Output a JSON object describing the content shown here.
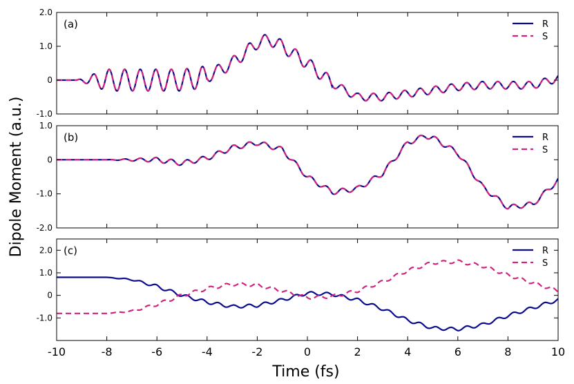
{
  "chart_data": [
    {
      "type": "line",
      "panel_label": "(a)",
      "ylim": [
        -1.0,
        2.0
      ],
      "yticks": [
        2.0,
        1.0,
        0,
        -1.0
      ],
      "ytick_labels": [
        "2.0",
        "1.0",
        "0",
        "-1.0"
      ],
      "legend": "top-right",
      "grid": false,
      "series": [
        {
          "name": "R",
          "color": "#0a0a8c",
          "dash": "solid",
          "x": [
            -10,
            -9,
            -8,
            -7,
            -6,
            -5,
            -4,
            -3,
            -2,
            -1.5,
            -1,
            0,
            1,
            2,
            3,
            4,
            5,
            6,
            7,
            8,
            9,
            10
          ],
          "y": [
            0,
            0,
            0,
            0,
            0,
            0,
            0.1,
            0.5,
            1.1,
            1.2,
            1.0,
            0.5,
            -0.1,
            -0.5,
            -0.5,
            -0.4,
            -0.3,
            -0.2,
            -0.15,
            -0.15,
            -0.15,
            0.05
          ]
        },
        {
          "name": "S",
          "color": "#d0237e",
          "dash": "dashed",
          "x": [
            -10,
            -9,
            -8,
            -7,
            -6,
            -5,
            -4,
            -3,
            -2,
            -1.5,
            -1,
            0,
            1,
            2,
            3,
            4,
            5,
            6,
            7,
            8,
            9,
            10
          ],
          "y": [
            0,
            0,
            0,
            0,
            0,
            0,
            0.1,
            0.5,
            1.1,
            1.2,
            1.0,
            0.5,
            -0.1,
            -0.5,
            -0.5,
            -0.4,
            -0.3,
            -0.2,
            -0.15,
            -0.15,
            -0.15,
            0.05
          ]
        }
      ]
    },
    {
      "type": "line",
      "panel_label": "(b)",
      "ylim": [
        -2.0,
        1.0
      ],
      "yticks": [
        1.0,
        0,
        -1.0,
        -2.0
      ],
      "ytick_labels": [
        "1.0",
        "0",
        "-1.0",
        "-2.0"
      ],
      "legend": "top-right",
      "grid": false,
      "series": [
        {
          "name": "R",
          "color": "#0a0a8c",
          "dash": "solid",
          "x": [
            -10,
            -8,
            -6,
            -5,
            -4,
            -3,
            -2,
            -1,
            0,
            1,
            2,
            3,
            4,
            4.7,
            5,
            6,
            7,
            8,
            9,
            10
          ],
          "y": [
            0,
            0,
            0,
            -0.1,
            0.05,
            0.35,
            0.5,
            0.3,
            -0.5,
            -0.95,
            -0.85,
            -0.4,
            0.5,
            0.7,
            0.65,
            0.2,
            -0.8,
            -1.4,
            -1.3,
            -0.6
          ]
        },
        {
          "name": "S",
          "color": "#d0237e",
          "dash": "dashed",
          "x": [
            -10,
            -8,
            -6,
            -5,
            -4,
            -3,
            -2,
            -1,
            0,
            1,
            2,
            3,
            4,
            4.7,
            5,
            6,
            7,
            8,
            9,
            10
          ],
          "y": [
            0,
            0,
            0,
            -0.1,
            0.05,
            0.35,
            0.5,
            0.3,
            -0.5,
            -0.95,
            -0.85,
            -0.4,
            0.5,
            0.7,
            0.65,
            0.2,
            -0.8,
            -1.4,
            -1.3,
            -0.6
          ]
        }
      ]
    },
    {
      "type": "line",
      "panel_label": "(c)",
      "ylim": [
        -2.0,
        2.5
      ],
      "yticks": [
        2.0,
        1.0,
        0,
        -1.0
      ],
      "ytick_labels": [
        "2.0",
        "1.0",
        "0",
        "-1.0"
      ],
      "legend": "top-right",
      "grid": false,
      "series": [
        {
          "name": "R",
          "color": "#0a0a8c",
          "dash": "solid",
          "x": [
            -10,
            -8,
            -7,
            -6,
            -5,
            -4,
            -3,
            -2,
            -1,
            0,
            1,
            2,
            3,
            4,
            5,
            6,
            7,
            8,
            9,
            10
          ],
          "y": [
            0.8,
            0.8,
            0.7,
            0.4,
            0,
            -0.3,
            -0.5,
            -0.45,
            -0.2,
            0.1,
            0.05,
            -0.2,
            -0.6,
            -1.1,
            -1.45,
            -1.5,
            -1.3,
            -0.9,
            -0.55,
            -0.2
          ]
        },
        {
          "name": "S",
          "color": "#d0237e",
          "dash": "dashed",
          "x": [
            -10,
            -8,
            -7,
            -6,
            -5,
            -4,
            -3,
            -2,
            -1,
            0,
            1,
            2,
            3,
            4,
            5,
            6,
            7,
            8,
            9,
            10
          ],
          "y": [
            -0.8,
            -0.8,
            -0.7,
            -0.4,
            0,
            0.3,
            0.5,
            0.45,
            0.2,
            -0.1,
            -0.05,
            0.2,
            0.6,
            1.1,
            1.45,
            1.5,
            1.3,
            0.9,
            0.55,
            0.2
          ]
        }
      ]
    }
  ],
  "axes": {
    "xlim": [
      -10,
      10
    ],
    "xticks": [
      -10,
      -8,
      -6,
      -4,
      -2,
      0,
      2,
      4,
      6,
      8,
      10
    ],
    "xtick_labels": [
      "-10",
      "-8",
      "-6",
      "-4",
      "-2",
      "0",
      "2",
      "4",
      "6",
      "8",
      "10"
    ],
    "xlabel": "Time (fs)",
    "ylabel": "Dipole Moment (a.u.)"
  }
}
